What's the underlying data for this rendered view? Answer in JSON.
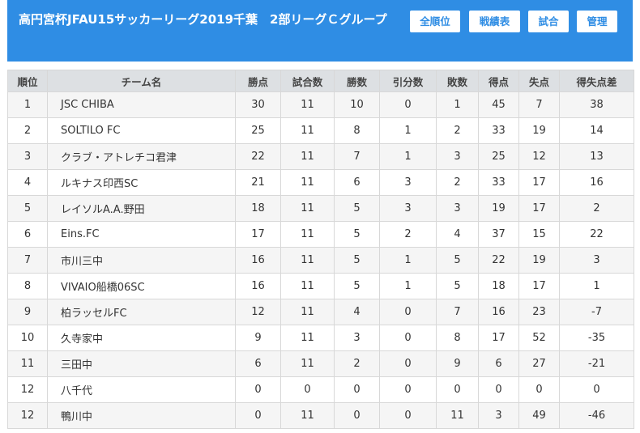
{
  "header": {
    "title": "高円宮杯JFAU15サッカーリーグ2019千葉　2部リーグＣグループ",
    "buttons": {
      "all_standings": "全順位",
      "results_table": "戦績表",
      "match": "試合",
      "admin": "管理"
    }
  },
  "table": {
    "columns": [
      "順位",
      "チーム名",
      "勝点",
      "試合数",
      "勝数",
      "引分数",
      "敗数",
      "得点",
      "失点",
      "得失点差"
    ],
    "rows": [
      [
        "1",
        "JSC CHIBA",
        "30",
        "11",
        "10",
        "0",
        "1",
        "45",
        "7",
        "38"
      ],
      [
        "2",
        "SOLTILO FC",
        "25",
        "11",
        "8",
        "1",
        "2",
        "33",
        "19",
        "14"
      ],
      [
        "3",
        "クラブ・アトレチコ君津",
        "22",
        "11",
        "7",
        "1",
        "3",
        "25",
        "12",
        "13"
      ],
      [
        "4",
        "ルキナス印西SC",
        "21",
        "11",
        "6",
        "3",
        "2",
        "33",
        "17",
        "16"
      ],
      [
        "5",
        "レイソルA.A.野田",
        "18",
        "11",
        "5",
        "3",
        "3",
        "19",
        "17",
        "2"
      ],
      [
        "6",
        "Eins.FC",
        "17",
        "11",
        "5",
        "2",
        "4",
        "37",
        "15",
        "22"
      ],
      [
        "7",
        "市川三中",
        "16",
        "11",
        "5",
        "1",
        "5",
        "22",
        "19",
        "3"
      ],
      [
        "8",
        "VIVAIO船橋06SC",
        "16",
        "11",
        "5",
        "1",
        "5",
        "18",
        "17",
        "1"
      ],
      [
        "9",
        "柏ラッセルFC",
        "12",
        "11",
        "4",
        "0",
        "7",
        "16",
        "23",
        "-7"
      ],
      [
        "10",
        "久寺家中",
        "9",
        "11",
        "3",
        "0",
        "8",
        "17",
        "52",
        "-35"
      ],
      [
        "11",
        "三田中",
        "6",
        "11",
        "2",
        "0",
        "9",
        "6",
        "27",
        "-21"
      ],
      [
        "12",
        "八千代",
        "0",
        "0",
        "0",
        "0",
        "0",
        "0",
        "0",
        "0"
      ],
      [
        "12",
        "鴨川中",
        "0",
        "11",
        "0",
        "0",
        "11",
        "3",
        "49",
        "-46"
      ]
    ]
  }
}
